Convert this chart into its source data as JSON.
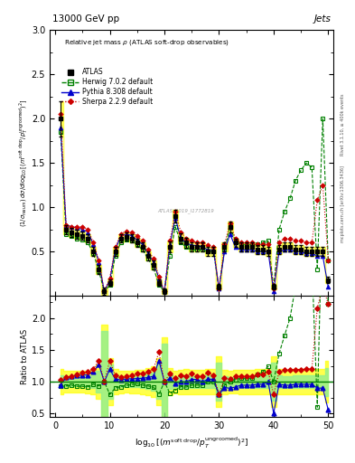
{
  "title_top": "13000 GeV pp",
  "title_right": "Jets",
  "main_title": "Relative jet mass ρ (ATLAS soft-drop observables)",
  "xlabel": "log$_{10}$[(m$^{\\mathrm{soft drop}}$/p$_T^{\\mathrm{ungroomed}}$)$^2$]",
  "ylabel_main": "(1/σ$_{resum}$) dσ/d log$_{10}$[(m$^{\\mathrm{soft drop}}$/p$_T^{\\mathrm{ungroomed}}$)$^2$]",
  "ylabel_ratio": "Ratio to ATLAS",
  "ylim_main": [
    0,
    3.0
  ],
  "ylim_ratio": [
    0.45,
    2.35
  ],
  "xlim": [
    -1,
    51
  ],
  "xticks": [
    0,
    10,
    20,
    30,
    40,
    50
  ],
  "yticks_main": [
    0.5,
    1.0,
    1.5,
    2.0,
    2.5,
    3.0
  ],
  "yticks_ratio": [
    0.5,
    1.0,
    1.5,
    2.0
  ],
  "watermark": "ATLAS_2019_I1772819",
  "rivet_text": "Rivet 3.1.10, ≥ 400k events",
  "mcplots_text": "mcplots.cern.ch [arXiv:1306.3436]"
}
